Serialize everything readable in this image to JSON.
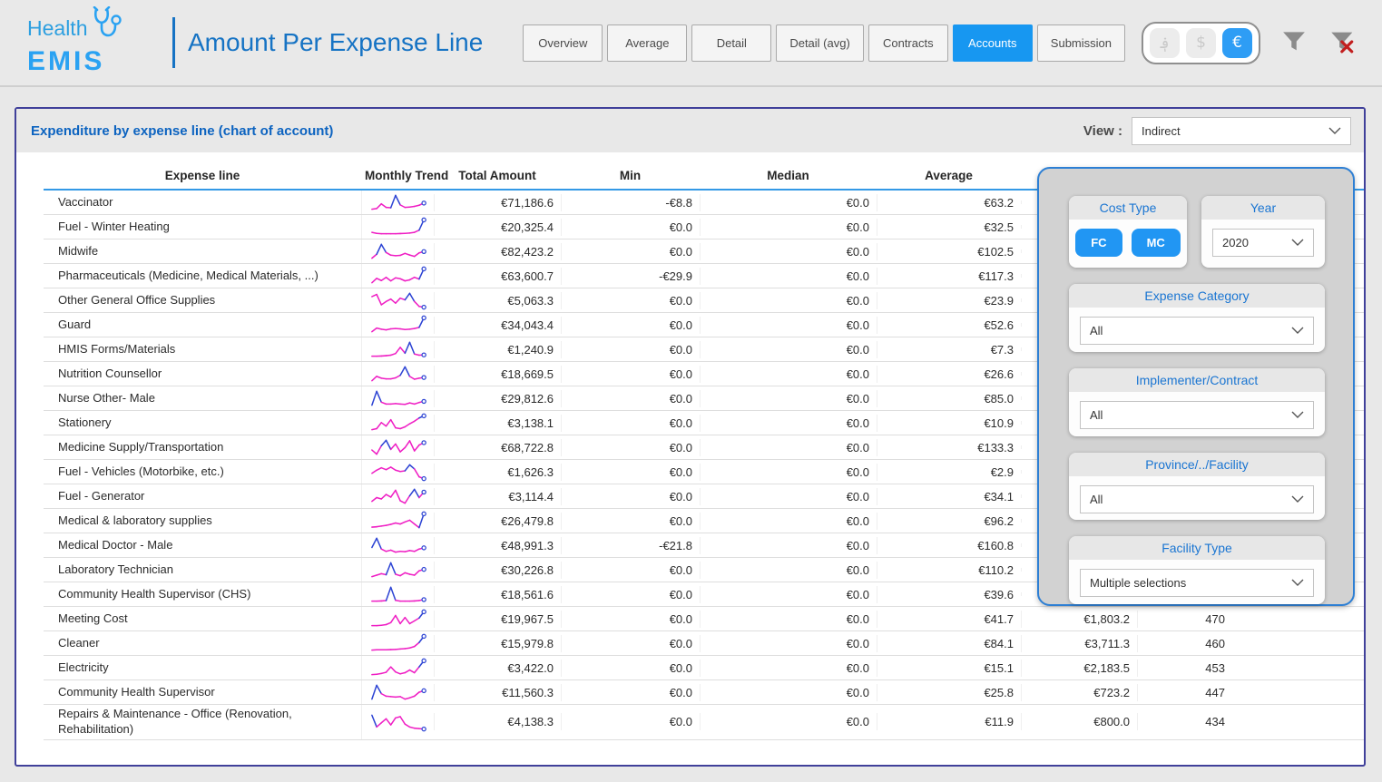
{
  "header": {
    "logo": {
      "line1": "Health",
      "line2": "EMIS"
    },
    "title": "Amount Per Expense Line",
    "nav": [
      {
        "label": "Overview",
        "active": false
      },
      {
        "label": "Average",
        "active": false
      },
      {
        "label": "Detail",
        "active": false
      },
      {
        "label": "Detail (avg)",
        "active": false
      },
      {
        "label": "Contracts",
        "active": false
      },
      {
        "label": "Accounts",
        "active": true
      },
      {
        "label": "Submission",
        "active": false
      }
    ],
    "currency": [
      {
        "name": "afghani",
        "symbol": "؋",
        "active": false
      },
      {
        "name": "dollar",
        "symbol": "$",
        "active": false
      },
      {
        "name": "euro",
        "symbol": "€",
        "active": true
      }
    ]
  },
  "panel": {
    "title": "Expenditure by expense line (chart of account)",
    "view_label": "View :",
    "view_value": "Indirect"
  },
  "table": {
    "columns": [
      "Expense line",
      "Monthly Trend",
      "Total Amount",
      "Min",
      "Median",
      "Average"
    ],
    "rows": [
      {
        "name": "Vaccinator",
        "trend": [
          18,
          22,
          48,
          28,
          26,
          95,
          42,
          28,
          30,
          34,
          40,
          52
        ],
        "total": "€71,186.6",
        "min": "-€8.8",
        "median": "€0.0",
        "average": "€63.2",
        "max": "",
        "count": ""
      },
      {
        "name": "Fuel - Winter Heating",
        "trend": [
          22,
          16,
          14,
          14,
          14,
          14,
          15,
          16,
          18,
          22,
          35,
          95
        ],
        "total": "€20,325.4",
        "min": "€0.0",
        "median": "€0.0",
        "average": "€32.5",
        "max": "",
        "count": ""
      },
      {
        "name": "Midwife",
        "trend": [
          18,
          40,
          95,
          50,
          35,
          32,
          34,
          45,
          36,
          28,
          48,
          55
        ],
        "total": "€82,423.2",
        "min": "€0.0",
        "median": "€0.0",
        "average": "€102.5",
        "max": "",
        "count": ""
      },
      {
        "name": "Pharmaceuticals (Medicine, Medical Materials, ...)",
        "trend": [
          18,
          42,
          30,
          48,
          28,
          45,
          40,
          28,
          34,
          48,
          38,
          95
        ],
        "total": "€63,600.7",
        "min": "-€29.9",
        "median": "€0.0",
        "average": "€117.3",
        "max": "",
        "count": ""
      },
      {
        "name": "Other General Office Supplies",
        "trend": [
          75,
          88,
          25,
          45,
          60,
          35,
          65,
          55,
          95,
          45,
          15,
          10
        ],
        "total": "€5,063.3",
        "min": "€0.0",
        "median": "€0.0",
        "average": "€23.9",
        "max": "",
        "count": ""
      },
      {
        "name": "Guard",
        "trend": [
          18,
          38,
          32,
          28,
          34,
          36,
          34,
          30,
          32,
          36,
          42,
          95
        ],
        "total": "€34,043.4",
        "min": "€0.0",
        "median": "€0.0",
        "average": "€52.6",
        "max": "",
        "count": ""
      },
      {
        "name": "HMIS Forms/Materials",
        "trend": [
          12,
          12,
          13,
          15,
          18,
          28,
          65,
          30,
          95,
          25,
          18,
          20
        ],
        "total": "€1,240.9",
        "min": "€0.0",
        "median": "€0.0",
        "average": "€7.3",
        "max": "",
        "count": ""
      },
      {
        "name": "Nutrition Counsellor",
        "trend": [
          18,
          42,
          32,
          28,
          28,
          34,
          48,
          95,
          42,
          26,
          32,
          36
        ],
        "total": "€18,669.5",
        "min": "€0.0",
        "median": "€0.0",
        "average": "€26.6",
        "max": "",
        "count": ""
      },
      {
        "name": "Nurse Other- Male",
        "trend": [
          22,
          95,
          38,
          28,
          28,
          30,
          28,
          26,
          34,
          28,
          36,
          42
        ],
        "total": "€29,812.6",
        "min": "€0.0",
        "median": "€0.0",
        "average": "€85.0",
        "max": "",
        "count": ""
      },
      {
        "name": "Stationery",
        "trend": [
          12,
          18,
          52,
          32,
          68,
          22,
          18,
          28,
          45,
          60,
          78,
          90
        ],
        "total": "€3,138.1",
        "min": "€0.0",
        "median": "€0.0",
        "average": "€10.9",
        "max": "",
        "count": ""
      },
      {
        "name": "Medicine Supply/Transportation",
        "trend": [
          35,
          12,
          58,
          88,
          38,
          68,
          25,
          48,
          85,
          30,
          62,
          75
        ],
        "total": "€68,722.8",
        "min": "€0.0",
        "median": "€0.0",
        "average": "€133.3",
        "max": "",
        "count": ""
      },
      {
        "name": "Fuel - Vehicles (Motorbike, etc.)",
        "trend": [
          38,
          55,
          68,
          58,
          72,
          55,
          48,
          52,
          85,
          62,
          18,
          8
        ],
        "total": "€1,626.3",
        "min": "€0.0",
        "median": "€0.0",
        "average": "€2.9",
        "max": "",
        "count": ""
      },
      {
        "name": "Fuel - Generator",
        "trend": [
          25,
          45,
          38,
          62,
          48,
          85,
          28,
          15,
          55,
          90,
          45,
          75
        ],
        "total": "€3,114.4",
        "min": "€0.0",
        "median": "€0.0",
        "average": "€34.1",
        "max": "",
        "count": ""
      },
      {
        "name": "Medical & laboratory supplies",
        "trend": [
          18,
          20,
          24,
          28,
          34,
          42,
          36,
          48,
          58,
          36,
          15,
          95
        ],
        "total": "€26,479.8",
        "min": "€0.0",
        "median": "€0.0",
        "average": "€96.2",
        "max": "",
        "count": ""
      },
      {
        "name": "Medical Doctor - Male",
        "trend": [
          48,
          95,
          40,
          28,
          34,
          24,
          28,
          26,
          32,
          28,
          40,
          46
        ],
        "total": "€48,991.3",
        "min": "-€21.8",
        "median": "€0.0",
        "average": "€160.8",
        "max": "",
        "count": ""
      },
      {
        "name": "Laboratory Technician",
        "trend": [
          18,
          24,
          30,
          26,
          75,
          28,
          22,
          34,
          28,
          24,
          42,
          48
        ],
        "total": "€30,226.8",
        "min": "€0.0",
        "median": "€0.0",
        "average": "€110.2",
        "max": "",
        "count": ""
      },
      {
        "name": "Community Health Supervisor (CHS)",
        "trend": [
          12,
          12,
          13,
          15,
          85,
          16,
          12,
          12,
          12,
          13,
          15,
          20
        ],
        "total": "€18,561.6",
        "min": "€0.0",
        "median": "€0.0",
        "average": "€39.6",
        "max": "",
        "count": ""
      },
      {
        "name": "Meeting Cost",
        "trend": [
          10,
          10,
          12,
          16,
          28,
          70,
          22,
          58,
          22,
          38,
          55,
          92
        ],
        "total": "€19,967.5",
        "min": "€0.0",
        "median": "€0.0",
        "average": "€41.7",
        "max": "€1,803.2",
        "count": "470"
      },
      {
        "name": "Cleaner",
        "trend": [
          16,
          18,
          18,
          18,
          19,
          20,
          22,
          24,
          28,
          36,
          58,
          92
        ],
        "total": "€15,979.8",
        "min": "€0.0",
        "median": "€0.0",
        "average": "€84.1",
        "max": "€3,711.3",
        "count": "460"
      },
      {
        "name": "Electricity",
        "trend": [
          18,
          20,
          24,
          30,
          58,
          32,
          22,
          28,
          42,
          28,
          58,
          90
        ],
        "total": "€3,422.0",
        "min": "€0.0",
        "median": "€0.0",
        "average": "€15.1",
        "max": "€2,183.5",
        "count": "453"
      },
      {
        "name": "Community Health Supervisor",
        "trend": [
          22,
          88,
          48,
          36,
          34,
          32,
          34,
          22,
          28,
          36,
          55,
          62
        ],
        "total": "€11,560.3",
        "min": "€0.0",
        "median": "€0.0",
        "average": "€25.8",
        "max": "€723.2",
        "count": "447"
      },
      {
        "name": "Repairs & Maintenance - Office (Renovation, Rehabilitation)",
        "trend": [
          85,
          28,
          48,
          68,
          38,
          72,
          78,
          42,
          28,
          22,
          20,
          18
        ],
        "total": "€4,138.3",
        "min": "€0.0",
        "median": "€0.0",
        "average": "€11.9",
        "max": "€800.0",
        "count": "434"
      }
    ]
  },
  "filters": {
    "cost_type": {
      "label": "Cost Type",
      "buttons": [
        "FC",
        "MC"
      ]
    },
    "year": {
      "label": "Year",
      "value": "2020"
    },
    "expense_category": {
      "label": "Expense Category",
      "value": "All"
    },
    "implementer": {
      "label": "Implementer/Contract",
      "value": "All"
    },
    "province": {
      "label": "Province/../Facility",
      "value": "All"
    },
    "facility_type": {
      "label": "Facility Type",
      "value": "Multiple selections"
    }
  },
  "colors": {
    "accent_blue": "#1797f1",
    "title_blue": "#1673c4",
    "panel_border": "#40409a",
    "filter_border": "#2d7fd4",
    "spark_pink": "#ef1fc4",
    "spark_blue": "#2e45d4",
    "clear_x_red": "#c21f1f"
  }
}
